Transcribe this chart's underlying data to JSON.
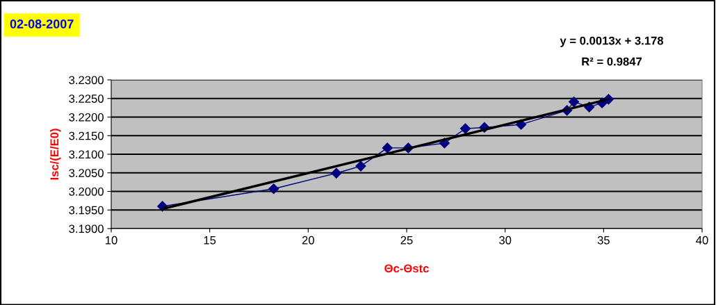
{
  "chart_data": {
    "type": "line",
    "title": "02-08-2007",
    "xlabel": "Θc-Θstc",
    "ylabel": "Isc/(E/E0)",
    "annotations": [
      "y = 0.0013x + 3.178",
      "R² = 0.9847"
    ],
    "xlim": [
      10,
      40
    ],
    "xticks": [
      10,
      15,
      20,
      25,
      30,
      35,
      40
    ],
    "ylim": [
      3.19,
      3.23
    ],
    "yticks": [
      {
        "value": 3.19,
        "label": "3.1900"
      },
      {
        "value": 3.195,
        "label": "3.1950"
      },
      {
        "value": 3.2,
        "label": "3.2000"
      },
      {
        "value": 3.205,
        "label": "3.2050"
      },
      {
        "value": 3.21,
        "label": "3.2100"
      },
      {
        "value": 3.215,
        "label": "3.2150"
      },
      {
        "value": 3.22,
        "label": "3.2200"
      },
      {
        "value": 3.225,
        "label": "3.2250"
      },
      {
        "value": 3.23,
        "label": "3.2300"
      }
    ],
    "grid": "y",
    "legend": false,
    "series": [
      {
        "color": "#000080",
        "marker": "diamond",
        "x": [
          12.6,
          18.25,
          21.43,
          22.67,
          24.02,
          25.08,
          26.92,
          27.98,
          28.95,
          30.81,
          33.14,
          33.49,
          34.27,
          34.92,
          35.25
        ],
        "values": [
          3.196,
          3.2007,
          3.2049,
          3.2068,
          3.2117,
          3.2117,
          3.213,
          3.2169,
          3.2172,
          3.218,
          3.2218,
          3.2241,
          3.2227,
          3.2238,
          3.2248
        ]
      },
      {
        "color": "#000000",
        "marker": "none",
        "x": [
          12.6,
          35.25
        ],
        "values": [
          3.1953,
          3.2248
        ]
      }
    ]
  }
}
